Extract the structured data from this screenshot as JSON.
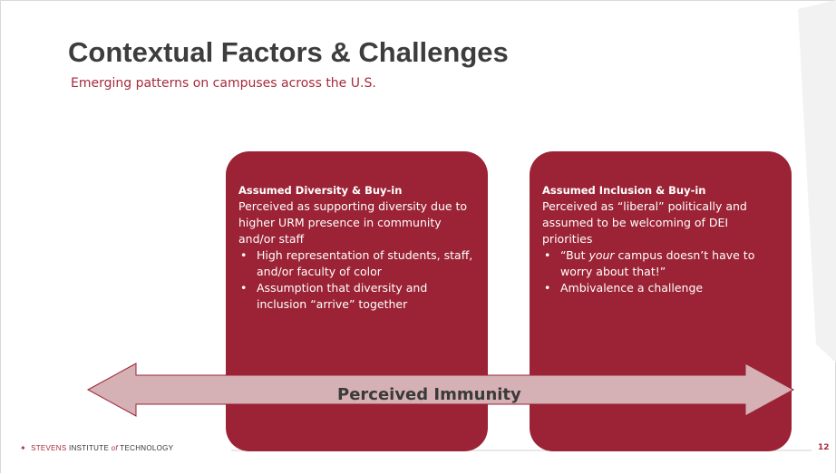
{
  "title": "Contextual Factors & Challenges",
  "subtitle": "Emerging patterns on campuses across the U.S.",
  "boxes": [
    {
      "heading": "Assumed Diversity & Buy-in",
      "body": "Perceived as supporting diversity due to higher URM presence in community and/or staff",
      "bullets": [
        [
          "High representation of students, staff, and/or faculty of color"
        ],
        [
          "Assumption that diversity and inclusion “arrive” together"
        ]
      ]
    },
    {
      "heading": "Assumed Inclusion & Buy-in",
      "body": "Perceived as “liberal” politically and assumed to be welcoming of DEI priorities",
      "bullets": [
        [
          "“But ",
          "your",
          " campus doesn’t have to worry about that!”"
        ],
        [
          "Ambivalence a challenge"
        ]
      ]
    }
  ],
  "arrow_label": "Perceived Immunity",
  "footer": {
    "logo": [
      "STEVENS",
      "INSTITUTE",
      "of",
      "TECHNOLOGY"
    ],
    "page_number": "12"
  }
}
